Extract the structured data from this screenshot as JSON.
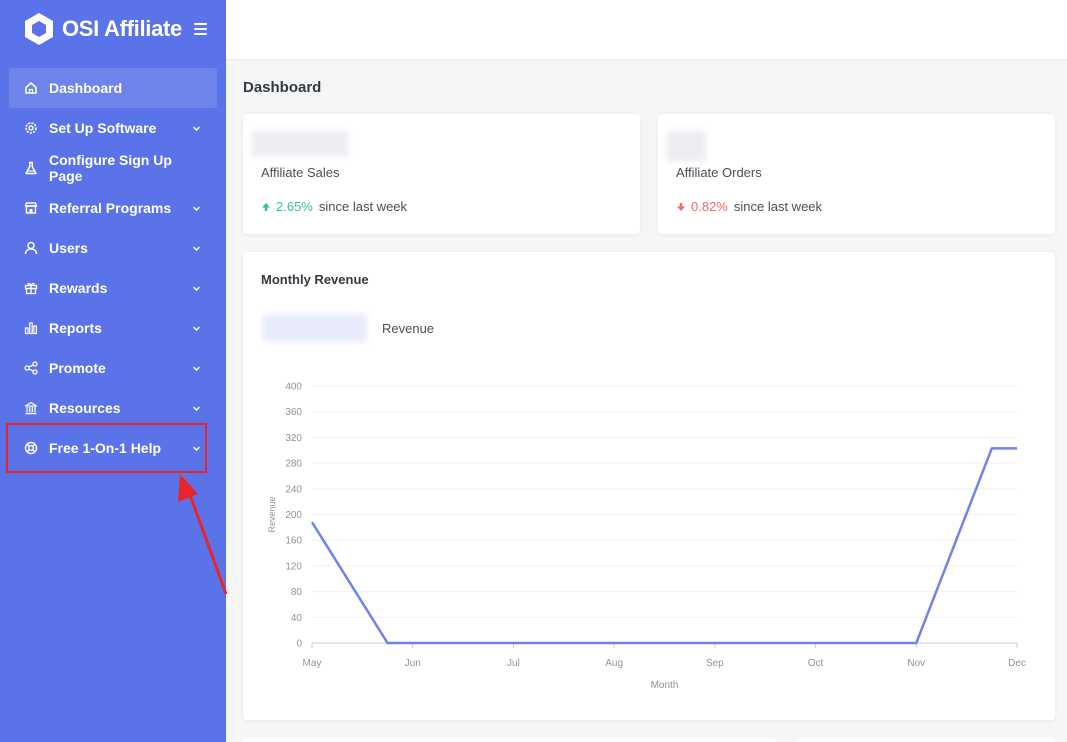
{
  "brand": {
    "name": "OSI Affiliate"
  },
  "sidebar": {
    "items": [
      {
        "label": "Dashboard",
        "icon": "home-icon",
        "active": true,
        "chevron": false
      },
      {
        "label": "Set Up Software",
        "icon": "gear-icon",
        "chevron": true
      },
      {
        "label": "Configure Sign Up Page",
        "icon": "flask-icon",
        "chevron": false
      },
      {
        "label": "Referral Programs",
        "icon": "store-icon",
        "chevron": true
      },
      {
        "label": "Users",
        "icon": "user-icon",
        "chevron": true
      },
      {
        "label": "Rewards",
        "icon": "gift-icon",
        "chevron": true
      },
      {
        "label": "Reports",
        "icon": "bar-chart-icon",
        "chevron": true
      },
      {
        "label": "Promote",
        "icon": "share-icon",
        "chevron": true
      },
      {
        "label": "Resources",
        "icon": "bank-icon",
        "chevron": true
      },
      {
        "label": "Free 1-On-1 Help",
        "icon": "lifebuoy-icon",
        "chevron": true
      }
    ]
  },
  "main": {
    "title": "Dashboard",
    "stats": [
      {
        "label": "Affiliate Sales",
        "change": "2.65%",
        "direction": "up",
        "since": "since last week"
      },
      {
        "label": "Affiliate Orders",
        "change": "0.82%",
        "direction": "down",
        "since": "since last week"
      }
    ],
    "chart_title": "Monthly Revenue",
    "legend_label": "Revenue"
  },
  "colors": {
    "sidebar": "#5b73e8",
    "line": "#7083e8",
    "up": "#34c38f",
    "down": "#f46a6a",
    "annotation": "#e8252b"
  },
  "chart_data": {
    "type": "line",
    "title": "Monthly Revenue",
    "xlabel": "Month",
    "ylabel": "Revenue",
    "categories": [
      "May",
      "Jun",
      "Jul",
      "Aug",
      "Sep",
      "Oct",
      "Nov",
      "Dec"
    ],
    "series": [
      {
        "name": "Revenue",
        "x": [
          "May",
          "May-Jun",
          "Jun",
          "Jul",
          "Aug",
          "Sep",
          "Oct",
          "Oct-Nov",
          "Nov",
          "Nov-Dec",
          "Dec"
        ],
        "values": [
          188,
          0,
          0,
          0,
          0,
          0,
          0,
          0,
          0,
          303,
          303
        ]
      }
    ],
    "yticks": [
      0,
      40,
      80,
      120,
      160,
      200,
      240,
      280,
      320,
      360,
      400
    ],
    "ylim": [
      0,
      400
    ],
    "grid": true
  }
}
